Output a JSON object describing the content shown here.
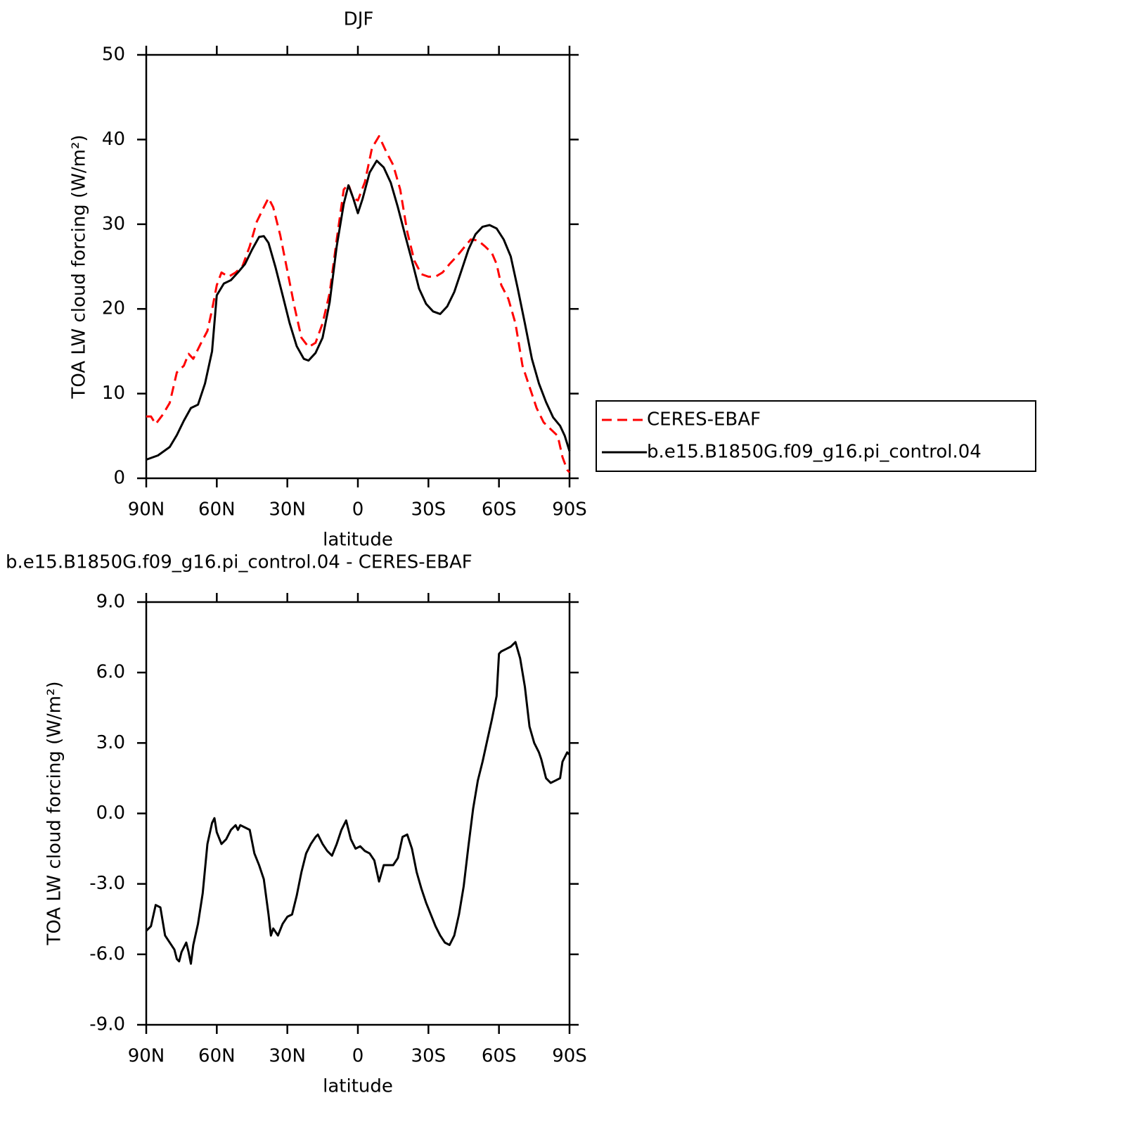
{
  "chart_data": [
    {
      "type": "line",
      "title": "DJF",
      "x_label": "latitude",
      "y_label": "TOA LW cloud forcing (W/m²)",
      "xlim": [
        90,
        -90
      ],
      "xticks": [
        {
          "value": 90,
          "label": "90N"
        },
        {
          "value": 60,
          "label": "60N"
        },
        {
          "value": 30,
          "label": "30N"
        },
        0,
        {
          "value": -30,
          "label": "30S"
        },
        {
          "value": -60,
          "label": "60S"
        },
        {
          "value": -90,
          "label": "90S"
        }
      ],
      "ylim": [
        0,
        50
      ],
      "yticks": [
        0,
        10,
        20,
        30,
        40,
        50
      ],
      "legend": "right",
      "series": [
        {
          "name": "CERES-EBAF",
          "color": "#ff0000",
          "linestyle": "dashed",
          "x": [
            90,
            88,
            86,
            83,
            80,
            77,
            74,
            72,
            70,
            67,
            64,
            62,
            60,
            58,
            55,
            52,
            49,
            46,
            43,
            40,
            38,
            36,
            33,
            30,
            27,
            24,
            21,
            18,
            15,
            12,
            9,
            6,
            4,
            2,
            0,
            -3,
            -6,
            -9,
            -12,
            -15,
            -18,
            -21,
            -24,
            -27,
            -30,
            -33,
            -36,
            -39,
            -42,
            -45,
            -48,
            -51,
            -54,
            -57,
            -59,
            -61,
            -64,
            -67,
            -70,
            -73,
            -76,
            -79,
            -82,
            -85,
            -87,
            -89,
            -90
          ],
          "values": [
            7.3,
            7.3,
            6.4,
            7.5,
            8.9,
            12.5,
            13.3,
            14.7,
            14.1,
            15.8,
            17.4,
            19.9,
            22.8,
            24.3,
            23.8,
            24.3,
            25.1,
            27.4,
            30.3,
            32,
            33.1,
            32,
            28.7,
            24.5,
            20.3,
            16.6,
            15.5,
            16,
            18.3,
            21.9,
            28.2,
            34.1,
            34.7,
            33.1,
            32.8,
            35,
            39,
            40.4,
            38.6,
            37,
            34.1,
            29.1,
            25.7,
            24.1,
            23.8,
            23.8,
            24.3,
            25.3,
            26.2,
            27.2,
            28.2,
            28.1,
            27.4,
            26.6,
            25.3,
            22.8,
            21.2,
            18.3,
            13.3,
            10.8,
            8.3,
            6.6,
            5.8,
            5,
            2.5,
            1,
            0.7
          ]
        },
        {
          "name": "b.e15.B1850G.f09_g16.pi_control.04",
          "color": "#000000",
          "linestyle": "solid",
          "x": [
            90,
            85,
            80,
            77,
            74,
            71,
            68,
            65,
            62,
            60,
            57,
            54,
            51,
            48,
            45,
            42,
            40,
            38,
            35,
            32,
            29,
            26,
            23,
            21,
            18,
            15,
            12,
            9,
            6,
            4,
            2,
            0,
            -2,
            -5,
            -8,
            -11,
            -14,
            -17,
            -20,
            -23,
            -26,
            -29,
            -32,
            -35,
            -38,
            -41,
            -44,
            -47,
            -50,
            -53,
            -56,
            -59,
            -62,
            -65,
            -68,
            -71,
            -74,
            -77,
            -80,
            -83,
            -86,
            -88,
            -90
          ],
          "values": [
            2.2,
            2.7,
            3.7,
            5.1,
            6.8,
            8.3,
            8.7,
            11.2,
            15,
            21.6,
            23,
            23.4,
            24.3,
            25.3,
            27,
            28.5,
            28.6,
            27.8,
            24.9,
            21.6,
            18.3,
            15.6,
            14.1,
            13.9,
            14.8,
            16.6,
            20.8,
            27.4,
            32.4,
            34.6,
            33.1,
            31.3,
            33,
            36.1,
            37.5,
            36.7,
            34.9,
            32,
            28.8,
            25.7,
            22.4,
            20.6,
            19.7,
            19.4,
            20.3,
            22,
            24.5,
            27,
            28.8,
            29.7,
            29.9,
            29.5,
            28.2,
            26.2,
            22.4,
            18.3,
            14.1,
            11.2,
            9,
            7.2,
            6.2,
            5,
            3.2
          ]
        }
      ]
    },
    {
      "type": "line",
      "title": "b.e15.B1850G.f09_g16.pi_control.04 - CERES-EBAF",
      "x_label": "latitude",
      "y_label": "TOA LW cloud forcing (W/m²)",
      "xlim": [
        90,
        -90
      ],
      "xticks": [
        {
          "value": 90,
          "label": "90N"
        },
        {
          "value": 60,
          "label": "60N"
        },
        {
          "value": 30,
          "label": "30N"
        },
        0,
        {
          "value": -30,
          "label": "30S"
        },
        {
          "value": -60,
          "label": "60S"
        },
        {
          "value": -90,
          "label": "90S"
        }
      ],
      "ylim": [
        -9,
        9
      ],
      "yticks": [
        {
          "value": -9,
          "label": "-9.0"
        },
        {
          "value": -6,
          "label": "-6.0"
        },
        {
          "value": -3,
          "label": "-3.0"
        },
        {
          "value": 0,
          "label": "0.0"
        },
        {
          "value": 3,
          "label": "3.0"
        },
        {
          "value": 6,
          "label": "6.0"
        },
        {
          "value": 9,
          "label": "9.0"
        }
      ],
      "color": "#000000",
      "x": [
        90,
        88,
        86,
        84,
        82,
        80,
        78,
        77,
        76,
        75,
        73,
        72,
        71,
        70,
        68,
        66,
        64,
        62,
        61,
        60,
        58,
        56,
        54,
        52,
        51,
        50,
        48,
        46,
        44,
        42,
        40,
        38,
        37,
        36,
        34,
        32,
        30,
        28,
        26,
        24,
        22,
        20,
        18,
        17,
        15,
        13,
        11,
        9,
        7,
        5,
        3,
        1,
        -1,
        -3,
        -5,
        -7,
        -9,
        -11,
        -13,
        -15,
        -17,
        -19,
        -21,
        -23,
        -25,
        -27,
        -29,
        -31,
        -33,
        -35,
        -37,
        -39,
        -41,
        -43,
        -45,
        -47,
        -49,
        -51,
        -53,
        -55,
        -57,
        -59,
        -60,
        -61,
        -63,
        -65,
        -67,
        -69,
        -71,
        -73,
        -75,
        -77,
        -78,
        -80,
        -82,
        -84,
        -86,
        -87,
        -89,
        -90
      ],
      "values": [
        -5,
        -4.8,
        -3.9,
        -4,
        -5.2,
        -5.5,
        -5.8,
        -6.2,
        -6.3,
        -5.9,
        -5.5,
        -5.9,
        -6.4,
        -5.6,
        -4.7,
        -3.4,
        -1.3,
        -0.4,
        -0.2,
        -0.8,
        -1.3,
        -1.1,
        -0.7,
        -0.5,
        -0.7,
        -0.5,
        -0.6,
        -0.7,
        -1.7,
        -2.2,
        -2.8,
        -4.3,
        -5.2,
        -4.9,
        -5.2,
        -4.7,
        -4.4,
        -4.3,
        -3.5,
        -2.5,
        -1.7,
        -1.3,
        -1,
        -0.9,
        -1.3,
        -1.6,
        -1.8,
        -1.3,
        -0.7,
        -0.3,
        -1.1,
        -1.5,
        -1.4,
        -1.6,
        -1.7,
        -2,
        -2.9,
        -2.2,
        -2.2,
        -2.2,
        -1.9,
        -1,
        -0.9,
        -1.5,
        -2.5,
        -3.2,
        -3.8,
        -4.3,
        -4.8,
        -5.2,
        -5.5,
        -5.6,
        -5.2,
        -4.3,
        -3.1,
        -1.4,
        0.2,
        1.4,
        2.2,
        3.1,
        4,
        5,
        6.8,
        6.9,
        7,
        7.1,
        7.3,
        6.6,
        5.4,
        3.7,
        3,
        2.6,
        2.3,
        1.5,
        1.3,
        1.4,
        1.5,
        2.2,
        2.6,
        2.5
      ]
    }
  ]
}
